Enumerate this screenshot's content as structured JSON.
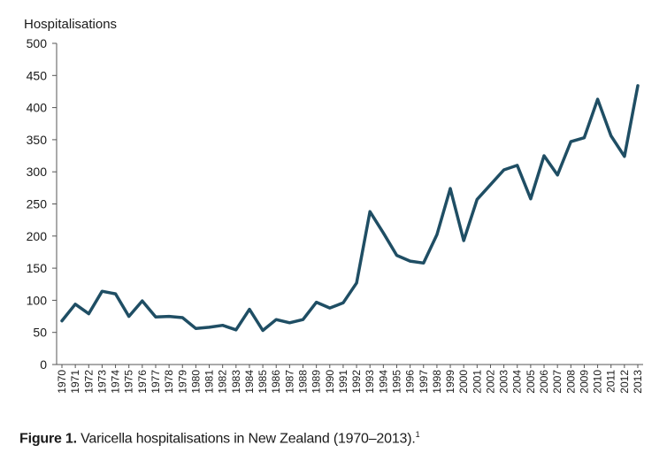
{
  "chart_data": {
    "type": "line",
    "ylabel": "Hospitalisations",
    "ylim": [
      0,
      500
    ],
    "yticks": [
      0,
      50,
      100,
      150,
      200,
      250,
      300,
      350,
      400,
      450,
      500
    ],
    "grid": false,
    "line_color": "#1f4e64",
    "x": [
      "1970",
      "1971",
      "1972",
      "1973",
      "1974",
      "1975",
      "1976",
      "1977",
      "1978",
      "1979",
      "1980",
      "1981",
      "1982",
      "1983",
      "1984",
      "1985",
      "1986",
      "1987",
      "1988",
      "1989",
      "1990",
      "1991",
      "1992",
      "1993",
      "1994",
      "1995",
      "1996",
      "1997",
      "1998",
      "1999",
      "2000",
      "2001",
      "2002",
      "2003",
      "2004",
      "2005",
      "2006",
      "2007",
      "2008",
      "2009",
      "2010",
      "2011",
      "2012",
      "2013"
    ],
    "series": [
      {
        "values": [
          68,
          94,
          79,
          114,
          110,
          75,
          99,
          74,
          75,
          73,
          56,
          58,
          61,
          54,
          86,
          53,
          70,
          65,
          70,
          97,
          88,
          96,
          127,
          238,
          205,
          170,
          161,
          158,
          202,
          274,
          193,
          257,
          280,
          303,
          310,
          258,
          325,
          295,
          347,
          353,
          413,
          356,
          324,
          434
        ]
      }
    ]
  },
  "caption": {
    "label": "Figure 1.",
    "text": " Varicella hospitalisations in New Zealand (1970–2013).",
    "ref": "1"
  }
}
